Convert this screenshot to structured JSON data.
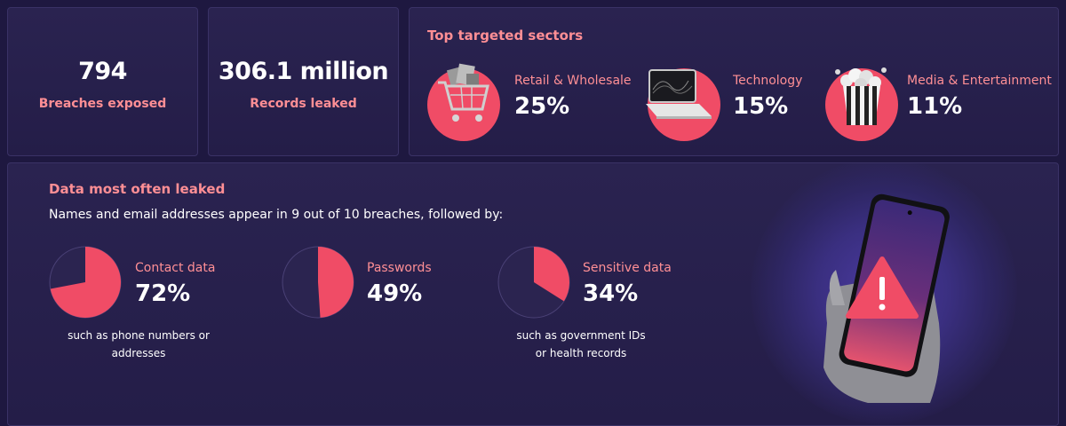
{
  "stats": [
    {
      "value": "794",
      "label": "Breaches exposed"
    },
    {
      "value": "306.1 million",
      "label": "Records leaked"
    }
  ],
  "sectors": {
    "title": "Top targeted sectors",
    "items": [
      {
        "name": "Retail & Wholesale",
        "percent": "25%",
        "icon": "shopping-cart-icon"
      },
      {
        "name": "Technology",
        "percent": "15%",
        "icon": "laptop-icon"
      },
      {
        "name": "Media & Entertainment",
        "percent": "11%",
        "icon": "popcorn-icon"
      }
    ]
  },
  "leaked": {
    "title": "Data most often leaked",
    "subtitle": "Names and email addresses appear in 9 out of 10 breaches, followed by:",
    "items": [
      {
        "name": "Contact data",
        "percent": "72%",
        "value": 72,
        "note_line1": "such as phone numbers or",
        "note_line2": "addresses"
      },
      {
        "name": "Passwords",
        "percent": "49%",
        "value": 49,
        "note_line1": "",
        "note_line2": ""
      },
      {
        "name": "Sensitive data",
        "percent": "34%",
        "value": 34,
        "note_line1": "such as government IDs",
        "note_line2": "or health records"
      }
    ]
  },
  "colors": {
    "background": "#1e1840",
    "accent": "#f04c66",
    "accent_text": "#ff8f95",
    "pie_rest": "#2b2450"
  }
}
